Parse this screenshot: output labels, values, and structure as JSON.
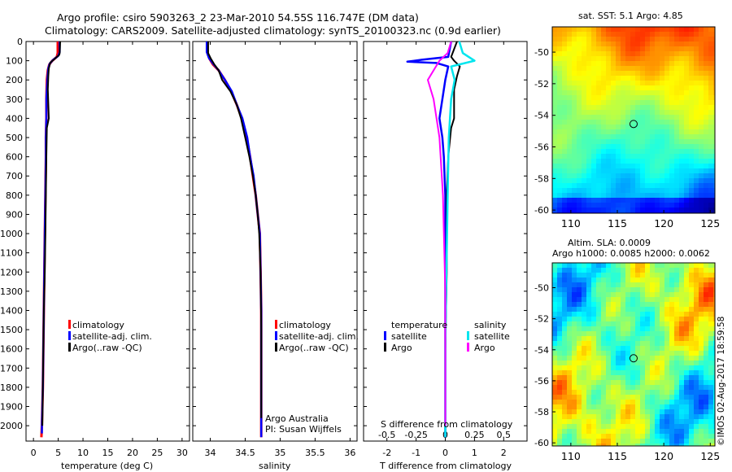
{
  "header": {
    "line1": "Argo profile: csiro 5903263_2 23-Mar-2010 54.55S 116.747E (DM data)",
    "line2": "Climatology: CARS2009. Satellite-adjusted climatology: synTS_20100323.nc (0.9d earlier)"
  },
  "colors": {
    "climatology": "#ff0000",
    "satellite": "#0000ff",
    "argo": "#000000",
    "salinity_sat": "#00e5ee",
    "salinity_argo": "#ff00ff"
  },
  "chart_data": [
    {
      "type": "line",
      "name": "temperature",
      "xlabel": "temperature (deg C)",
      "xlim": [
        -1.5,
        31.5
      ],
      "ylim": [
        2080,
        0
      ],
      "xticks": [
        0,
        5,
        10,
        15,
        20,
        25,
        30
      ],
      "yticks": [
        0,
        100,
        200,
        300,
        400,
        500,
        600,
        700,
        800,
        900,
        1000,
        1100,
        1200,
        1300,
        1400,
        1500,
        1600,
        1700,
        1800,
        1900,
        2000
      ],
      "series": [
        {
          "name": "climatology",
          "color": "#ff0000",
          "x": [
            4.9,
            4.9,
            4.7,
            3.8,
            3.2,
            2.9,
            2.7,
            2.6,
            2.6,
            2.5,
            2.5,
            2.4,
            2.3,
            2.2,
            2.1,
            2.0,
            1.9,
            1.7,
            1.6
          ],
          "y": [
            0,
            60,
            80,
            100,
            120,
            150,
            200,
            300,
            400,
            500,
            600,
            800,
            1000,
            1200,
            1400,
            1600,
            1800,
            2000,
            2060
          ]
        },
        {
          "name": "satellite-adj. clim.",
          "color": "#0000ff",
          "x": [
            5.3,
            5.3,
            5.0,
            4.0,
            3.3,
            3.0,
            2.8,
            2.6,
            2.6,
            2.5,
            2.5,
            2.4,
            2.3,
            2.2,
            2.1,
            2.0,
            1.9,
            1.7,
            1.7
          ],
          "y": [
            0,
            55,
            75,
            95,
            115,
            140,
            200,
            300,
            400,
            500,
            600,
            800,
            1000,
            1200,
            1400,
            1600,
            1800,
            2000,
            2040
          ]
        },
        {
          "name": "Argo(..raw -QC)",
          "color": "#000000",
          "x": [
            5.4,
            5.3,
            5.2,
            4.3,
            3.4,
            3.1,
            3.0,
            2.9,
            3.1,
            2.7,
            2.6,
            2.5,
            2.4,
            2.3,
            2.1,
            2.0,
            1.9,
            1.8
          ],
          "y": [
            0,
            60,
            70,
            90,
            110,
            140,
            180,
            250,
            400,
            450,
            600,
            800,
            1000,
            1200,
            1400,
            1600,
            1800,
            2000
          ]
        }
      ],
      "legend": [
        "climatology",
        "satellite-adj. clim.",
        "Argo(..raw -QC)"
      ]
    },
    {
      "type": "line",
      "name": "salinity",
      "xlabel": "salinity",
      "xlim": [
        33.75,
        36.1
      ],
      "ylim": [
        2080,
        0
      ],
      "xticks": [
        34,
        34.5,
        35,
        35.5,
        36
      ],
      "xticklabels": [
        "34",
        "34.5",
        "35",
        "35.5",
        "36"
      ],
      "series": [
        {
          "name": "climatology",
          "color": "#ff0000",
          "x": [
            33.96,
            33.96,
            33.99,
            34.04,
            34.12,
            34.21,
            34.3,
            34.38,
            34.45,
            34.52,
            34.57,
            34.61,
            34.65,
            34.68,
            34.71,
            34.72,
            34.73,
            34.73,
            34.73,
            34.73
          ],
          "y": [
            0,
            60,
            90,
            120,
            150,
            200,
            260,
            330,
            400,
            500,
            600,
            700,
            800,
            900,
            1000,
            1200,
            1400,
            1600,
            1800,
            2060
          ]
        },
        {
          "name": "satellite-adj. clim.",
          "color": "#0000ff",
          "x": [
            33.95,
            33.95,
            33.98,
            34.04,
            34.12,
            34.21,
            34.31,
            34.38,
            34.46,
            34.53,
            34.57,
            34.62,
            34.65,
            34.68,
            34.71,
            34.72,
            34.73,
            34.73,
            34.73,
            34.73
          ],
          "y": [
            0,
            55,
            85,
            115,
            150,
            200,
            260,
            330,
            400,
            500,
            600,
            700,
            800,
            900,
            1000,
            1200,
            1400,
            1600,
            1800,
            2060
          ]
        },
        {
          "name": "Argo(..raw -QC)",
          "color": "#000000",
          "x": [
            33.97,
            33.97,
            34.01,
            34.06,
            34.12,
            34.17,
            34.29,
            34.38,
            34.44,
            34.5,
            34.56,
            34.61,
            34.65,
            34.68,
            34.7,
            34.72,
            34.73,
            34.73
          ],
          "y": [
            0,
            60,
            90,
            120,
            150,
            200,
            260,
            330,
            400,
            500,
            600,
            700,
            800,
            900,
            1000,
            1200,
            1500,
            1960
          ]
        }
      ],
      "legend": [
        "climatology",
        "satellite-adj. clim.",
        "Argo(..raw -QC)"
      ],
      "annotation_lines": [
        "Argo Australia",
        "PI: Susan Wijffels"
      ]
    },
    {
      "type": "line",
      "name": "difference",
      "xlabel_bottom": "T difference from climatology",
      "xlabel_top": "S difference from climatology",
      "xlim": [
        -2.8,
        2.8
      ],
      "ylim": [
        2080,
        0
      ],
      "xticks_T": [
        -2,
        -1,
        0,
        1,
        2
      ],
      "xticks_S": [
        -0.5,
        -0.25,
        0,
        0.25,
        0.5
      ],
      "xticklabels_S": [
        "-0.5",
        "-0.25",
        "0",
        "0.25",
        "0.5"
      ],
      "series": [
        {
          "name": "temperature satellite",
          "color": "#0000ff",
          "x": [
            0.2,
            0.1,
            -0.8,
            -1.3,
            -0.3,
            0.1,
            0.0,
            -0.1,
            -0.2,
            -0.1,
            -0.05,
            0.0,
            0.0,
            0.0,
            0.0,
            0.0
          ],
          "y": [
            0,
            80,
            95,
            105,
            112,
            130,
            200,
            300,
            400,
            500,
            600,
            800,
            1000,
            1400,
            1800,
            2060
          ]
        },
        {
          "name": "temperature Argo",
          "color": "#000000",
          "x": [
            0.4,
            0.2,
            0.3,
            0.5,
            0.4,
            0.3,
            0.3,
            0.2,
            0.1,
            0.05,
            0.05,
            0.0,
            0.0
          ],
          "y": [
            0,
            80,
            100,
            130,
            180,
            250,
            400,
            450,
            600,
            800,
            1200,
            1600,
            2000
          ]
        },
        {
          "name": "salinity satellite",
          "color": "#00e5ee",
          "x": [
            0.12,
            0.15,
            0.25,
            0.05,
            0.08,
            0.05,
            0.03,
            0.02,
            0.01,
            0.0,
            0.0
          ],
          "y": [
            0,
            60,
            100,
            130,
            200,
            300,
            500,
            800,
            1200,
            1600,
            2060
          ]
        },
        {
          "name": "salinity Argo",
          "color": "#ff00ff",
          "x": [
            0.05,
            0.02,
            -0.05,
            -0.15,
            -0.1,
            -0.05,
            -0.02,
            0.0,
            0.0
          ],
          "y": [
            0,
            60,
            100,
            200,
            300,
            500,
            800,
            1300,
            2000
          ]
        }
      ],
      "legend_headings": [
        "temperature",
        "salinity"
      ],
      "legend": [
        "satellite",
        "Argo",
        "satellite",
        "Argo"
      ]
    },
    {
      "type": "heatmap",
      "name": "sat_sst_map",
      "title": "sat. SST: 5.1 Argo: 4.85",
      "xticks": [
        110,
        115,
        120,
        125
      ],
      "yticks": [
        -50,
        -52,
        -54,
        -56,
        -58,
        -60
      ],
      "xlim": [
        108,
        125.5
      ],
      "ylim": [
        -60.2,
        -48.4
      ],
      "marker": {
        "lon": 116.747,
        "lat": -54.55
      }
    },
    {
      "type": "heatmap",
      "name": "altim_sla_map",
      "title_line1": "Altim. SLA: 0.0009",
      "title_line2": "Argo h1000: 0.0085 h2000: 0.0062",
      "xticks": [
        110,
        115,
        120,
        125
      ],
      "yticks": [
        -50,
        -52,
        -54,
        -56,
        -58,
        -60
      ],
      "xlim": [
        108,
        125.5
      ],
      "ylim": [
        -60.2,
        -48.4
      ],
      "marker": {
        "lon": 116.747,
        "lat": -54.55
      }
    }
  ],
  "watermark": "©IMOS 02-Aug-2017 18:59:58"
}
